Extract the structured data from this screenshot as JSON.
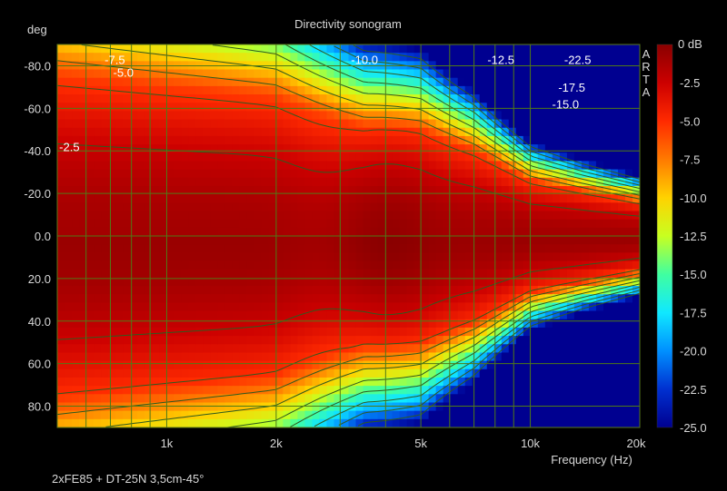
{
  "chart_data": {
    "type": "heatmap",
    "title": "Directivity sonogram",
    "ylabel": "deg",
    "xlabel": "Frequency (Hz)",
    "footer": "2xFE85 + DT-25N 3,5cm-45°",
    "watermark": "ARTA",
    "x_scale": "log",
    "xlim": [
      500,
      20000
    ],
    "ylim": [
      -90,
      90
    ],
    "y_ticks": [
      -80,
      -60,
      -40,
      -20,
      0,
      20,
      40,
      60,
      80
    ],
    "y_tick_labels": [
      "-80.0",
      "-60.0",
      "-40.0",
      "-20.0",
      "0.0",
      "20.0",
      "40.0",
      "60.0",
      "80.0"
    ],
    "x_ticks": [
      1000,
      2000,
      5000,
      10000,
      20000
    ],
    "x_tick_labels": [
      "1k",
      "2k",
      "5k",
      "10k",
      "20k"
    ],
    "x_minor_ticks": [
      600,
      700,
      800,
      900,
      3000,
      4000,
      6000,
      7000,
      8000,
      9000
    ],
    "grid": true,
    "colorbar": {
      "unit_label": "0 dB",
      "range": [
        -25,
        0
      ],
      "ticks": [
        -2.5,
        -5,
        -7.5,
        -10,
        -12.5,
        -15,
        -17.5,
        -20,
        -22.5,
        -25
      ],
      "tick_labels": [
        "-2.5",
        "-5.0",
        "-7.5",
        "-10.0",
        "-12.5",
        "-15.0",
        "-17.5",
        "-20.0",
        "-22.5",
        "-25.0"
      ],
      "colors": [
        "#8a0000",
        "#cc0000",
        "#ff2a00",
        "#ff7a00",
        "#ffd200",
        "#c8ff20",
        "#40ffa0",
        "#10e8ff",
        "#0090ff",
        "#0030d0",
        "#000090"
      ]
    },
    "contour_levels": [
      -2.5,
      -5,
      -7.5,
      -10,
      -12.5,
      -15,
      -17.5,
      -20,
      -22.5
    ],
    "contour_labels": [
      {
        "text": "-7.5",
        "x": 720,
        "y": -83
      },
      {
        "text": "-5.0",
        "x": 760,
        "y": -77
      },
      {
        "text": "-2.5",
        "x": 540,
        "y": -42
      },
      {
        "text": "-10.0",
        "x": 3500,
        "y": -83
      },
      {
        "text": "-12.5",
        "x": 8300,
        "y": -83
      },
      {
        "text": "-22.5",
        "x": 13500,
        "y": -83
      },
      {
        "text": "-17.5",
        "x": 13000,
        "y": -70
      },
      {
        "text": "-15.0",
        "x": 12500,
        "y": -62
      }
    ],
    "model": {
      "description_free": true,
      "frequency_knots": [
        500,
        1000,
        2000,
        3500,
        5000,
        7000,
        10000,
        14000,
        20000
      ],
      "beamwidth_deg": [
        150,
        140,
        130,
        100,
        98,
        80,
        52,
        42,
        32
      ],
      "rolloff_db_per_10deg": [
        0.45,
        0.5,
        0.55,
        0.7,
        0.8,
        1.2,
        1.9,
        2.4,
        2.6
      ]
    }
  }
}
